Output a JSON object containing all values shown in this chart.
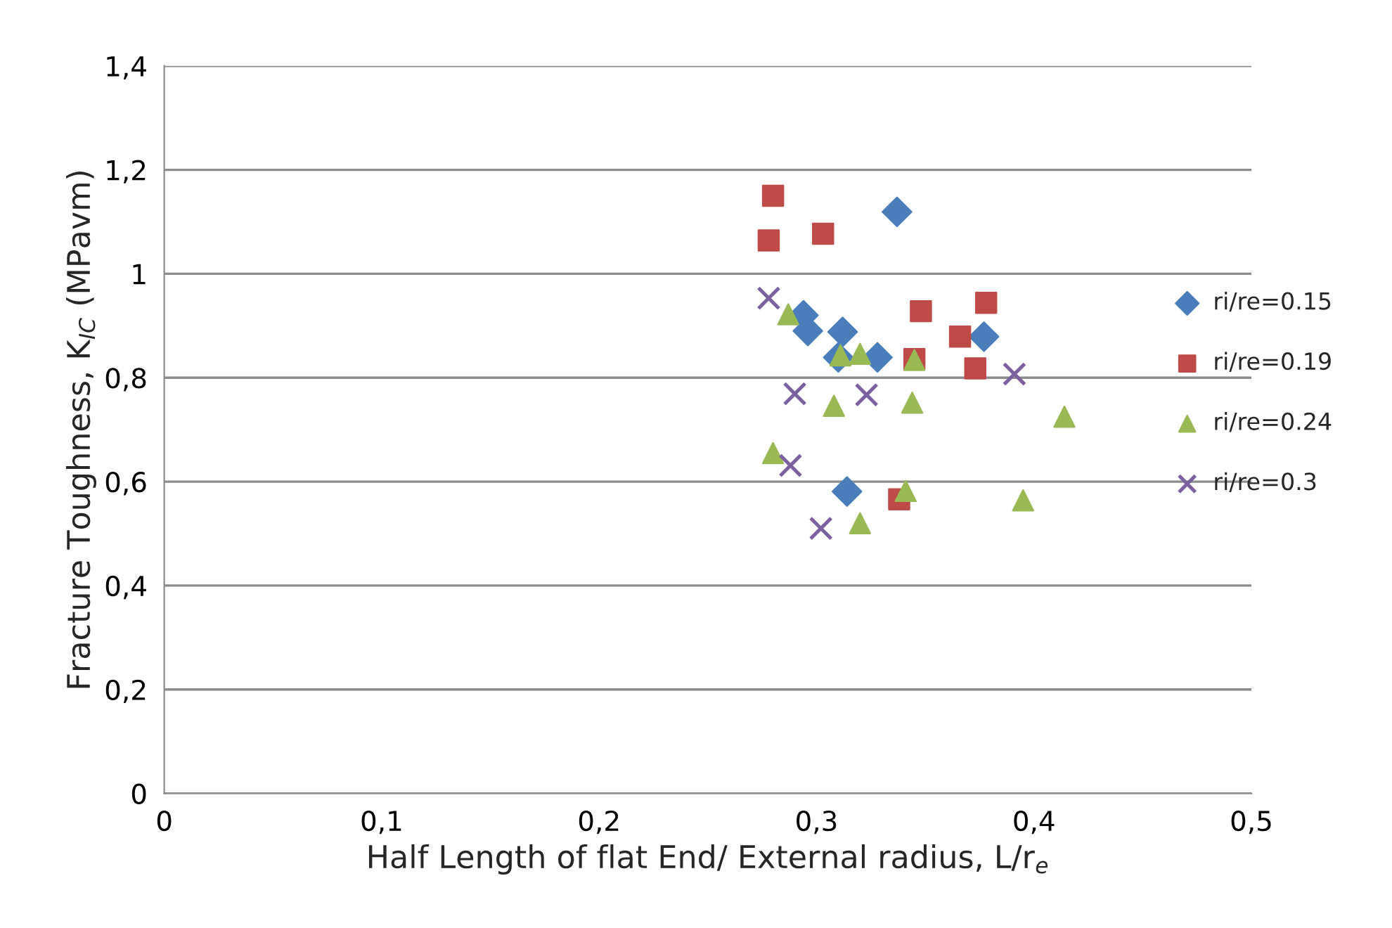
{
  "chart_data": {
    "type": "scatter",
    "xlabel": "Half Length of flat End/ External radius, L/r$_{e}$",
    "ylabel": "Fracture Toughness, K$_{IC}$ (MPavm)",
    "xlim": [
      0,
      0.5
    ],
    "ylim": [
      0,
      1.4
    ],
    "xticks": [
      {
        "value": 0,
        "label": "0"
      },
      {
        "value": 0.1,
        "label": "0,1"
      },
      {
        "value": 0.2,
        "label": "0,2"
      },
      {
        "value": 0.3,
        "label": "0,3"
      },
      {
        "value": 0.4,
        "label": "0,4"
      },
      {
        "value": 0.5,
        "label": "0,5"
      }
    ],
    "yticks": [
      {
        "value": 0,
        "label": "0"
      },
      {
        "value": 0.2,
        "label": "0,2"
      },
      {
        "value": 0.4,
        "label": "0,4"
      },
      {
        "value": 0.6,
        "label": "0,6"
      },
      {
        "value": 0.8,
        "label": "0,8"
      },
      {
        "value": 1.0,
        "label": "1"
      },
      {
        "value": 1.2,
        "label": "1,2"
      },
      {
        "value": 1.4,
        "label": "1,4"
      }
    ],
    "grid": "y",
    "legend": "right",
    "series": [
      {
        "name": "ri/re=0.15",
        "color": "#4a7ebb",
        "marker": "diamond",
        "x": [
          0.337,
          0.294,
          0.296,
          0.312,
          0.31,
          0.328,
          0.377,
          0.314
        ],
        "values": [
          1.119,
          0.92,
          0.89,
          0.888,
          0.839,
          0.839,
          0.879,
          0.581
        ]
      },
      {
        "name": "ri/re=0.19",
        "color": "#be4b48",
        "marker": "square",
        "x": [
          0.28,
          0.278,
          0.303,
          0.348,
          0.378,
          0.366,
          0.373,
          0.345,
          0.338
        ],
        "values": [
          1.15,
          1.064,
          1.077,
          0.928,
          0.944,
          0.879,
          0.818,
          0.836,
          0.566
        ]
      },
      {
        "name": "ri/re=0.24",
        "color": "#98b954",
        "marker": "triangle",
        "x": [
          0.287,
          0.311,
          0.32,
          0.345,
          0.308,
          0.344,
          0.28,
          0.341,
          0.32,
          0.395,
          0.414
        ],
        "values": [
          0.922,
          0.843,
          0.846,
          0.834,
          0.746,
          0.752,
          0.655,
          0.582,
          0.52,
          0.564,
          0.725
        ]
      },
      {
        "name": "ri/re=0.3",
        "color": "#7d60a0",
        "marker": "cross",
        "x": [
          0.278,
          0.29,
          0.323,
          0.391,
          0.288,
          0.302
        ],
        "values": [
          0.953,
          0.769,
          0.767,
          0.807,
          0.631,
          0.51
        ]
      }
    ]
  }
}
